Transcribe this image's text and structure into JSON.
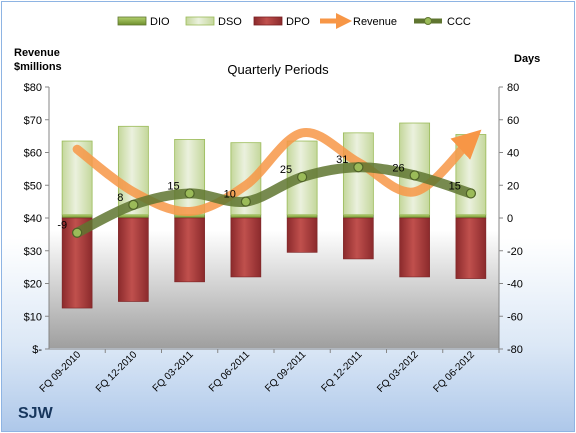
{
  "chart_data": {
    "type": "bar",
    "title": "Quarterly Periods",
    "ticker": "SJW",
    "left_axis_label": [
      "Revenue",
      "$millions"
    ],
    "right_axis_label": "Days",
    "left_axis": {
      "min": 0,
      "max": 80,
      "step": 10,
      "tick_labels": [
        "$-",
        "$10",
        "$20",
        "$30",
        "$40",
        "$50",
        "$60",
        "$70",
        "$80"
      ]
    },
    "right_axis": {
      "min": -80,
      "max": 80,
      "step": 20,
      "tick_labels": [
        "-80",
        "-60",
        "-40",
        "-20",
        "0",
        "20",
        "40",
        "60",
        "80"
      ]
    },
    "categories": [
      "FQ 09-2010",
      "FQ 12-2010",
      "FQ 03-2011",
      "FQ 06-2011",
      "FQ 09-2011",
      "FQ 12-2011",
      "FQ 03-2012",
      "FQ 06-2012"
    ],
    "legend": [
      "DIO",
      "DSO",
      "DPO",
      "Revenue",
      "CCC"
    ],
    "legend_position": "top",
    "series": [
      {
        "name": "DIO",
        "axis": "right",
        "values": [
          2,
          2,
          2,
          2,
          2,
          2,
          2,
          2
        ]
      },
      {
        "name": "DSO",
        "axis": "right",
        "values": [
          45,
          54,
          46,
          44,
          45,
          50,
          56,
          49
        ]
      },
      {
        "name": "DPO",
        "axis": "right",
        "values": [
          -55,
          -51,
          -39,
          -36,
          -21,
          -25,
          -36,
          -37
        ]
      },
      {
        "name": "Revenue",
        "axis": "left",
        "values": [
          61,
          48,
          42,
          50,
          66,
          57,
          48,
          64
        ]
      },
      {
        "name": "CCC",
        "axis": "right",
        "values": [
          -9,
          8,
          15,
          10,
          25,
          31,
          26,
          15
        ],
        "data_labels": [
          "-9",
          "8",
          "15",
          "10",
          "25",
          "31",
          "26",
          "15"
        ]
      }
    ],
    "colors": {
      "DIO": "#8cb446",
      "DSO": "#d7e4bd",
      "DPO": "#a03537",
      "Revenue": "#f79646",
      "CCC": "#5f7530",
      "grid": "#d9d9d9"
    },
    "grid": false
  }
}
